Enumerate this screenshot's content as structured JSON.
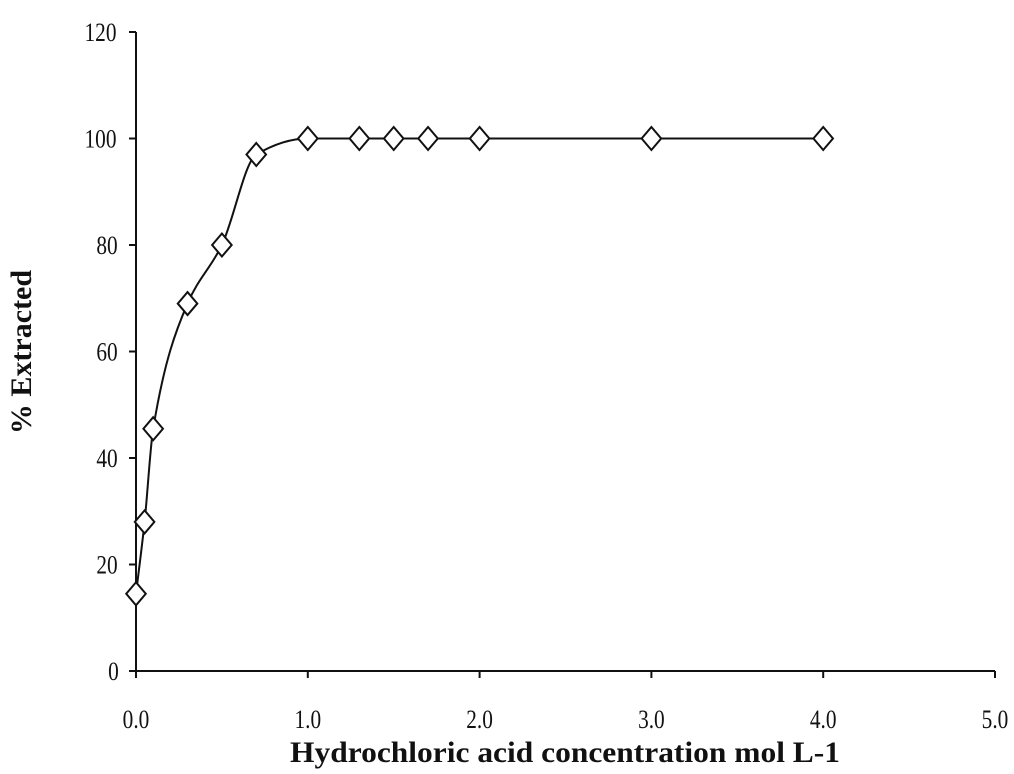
{
  "chart_data": {
    "type": "scatter",
    "title": "",
    "xlabel": "Hydrochloric acid concentration mol L-1",
    "ylabel": "% Extracted",
    "xlim": [
      0,
      5
    ],
    "ylim": [
      0,
      120
    ],
    "x_ticks": [
      "0.0",
      "1.0",
      "2.0",
      "3.0",
      "4.0",
      "5.0"
    ],
    "y_ticks": [
      "0",
      "20",
      "40",
      "60",
      "80",
      "100",
      "120"
    ],
    "grid": false,
    "legend": "none",
    "series": [
      {
        "marker": "diamond-open",
        "line": "smooth",
        "x": [
          0.0,
          0.05,
          0.1,
          0.3,
          0.5,
          0.7,
          1.0,
          1.3,
          1.5,
          1.7,
          2.0,
          3.0,
          4.0
        ],
        "y": [
          14.5,
          28,
          45.5,
          69,
          80,
          97,
          100,
          100,
          100,
          100,
          100,
          100,
          100
        ]
      }
    ],
    "colors": {
      "line": "#111111",
      "marker_fill": "#ffffff"
    }
  }
}
